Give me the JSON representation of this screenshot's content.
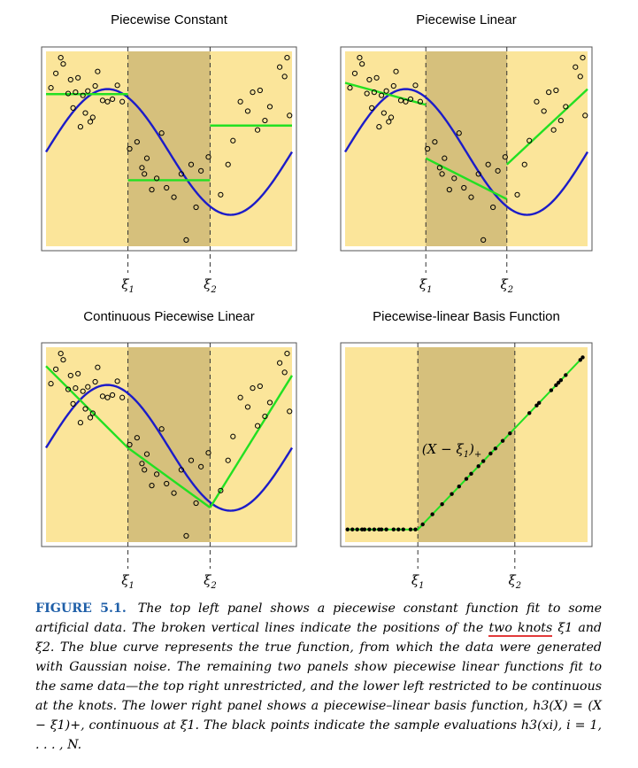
{
  "colors": {
    "outer_region": "#fbe59a",
    "middle_region": "#d6c07c",
    "true_curve": "#1c1cc8",
    "fit": "#22e022",
    "points": "#000000",
    "frame": "#555555",
    "figure_label": "#1f5fa8",
    "underline": "#e23a3a"
  },
  "knot_labels": [
    "ξ1",
    "ξ2"
  ],
  "chart_data": [
    {
      "type": "scatter",
      "title": "Piecewise Constant",
      "knots": [
        "ξ1",
        "ξ2"
      ],
      "x_tick_labels": [
        "ξ1",
        "ξ2"
      ],
      "xlim": [
        0,
        1
      ],
      "ylim": [
        -1.5,
        1.6
      ],
      "knot_values": [
        0.333,
        0.667
      ],
      "true_function": "sin(2*pi*x)",
      "fit": {
        "kind": "piecewise-constant",
        "segments": [
          {
            "x0": 0.0,
            "x1": 0.333,
            "y0": 0.92,
            "y1": 0.92
          },
          {
            "x0": 0.333,
            "x1": 0.667,
            "y0": -0.45,
            "y1": -0.45
          },
          {
            "x0": 0.667,
            "x1": 1.0,
            "y0": 0.42,
            "y1": 0.42
          }
        ]
      },
      "grid": false,
      "legend": "none"
    },
    {
      "type": "scatter",
      "title": "Piecewise Linear",
      "knots": [
        "ξ1",
        "ξ2"
      ],
      "x_tick_labels": [
        "ξ1",
        "ξ2"
      ],
      "xlim": [
        0,
        1
      ],
      "ylim": [
        -1.5,
        1.6
      ],
      "knot_values": [
        0.333,
        0.667
      ],
      "true_function": "sin(2*pi*x)",
      "fit": {
        "kind": "piecewise-linear",
        "segments": [
          {
            "x0": 0.0,
            "x1": 0.333,
            "y0": 1.1,
            "y1": 0.75
          },
          {
            "x0": 0.333,
            "x1": 0.667,
            "y0": -0.1,
            "y1": -0.75
          },
          {
            "x0": 0.667,
            "x1": 1.0,
            "y0": -0.2,
            "y1": 1.0
          }
        ]
      },
      "grid": false,
      "legend": "none"
    },
    {
      "type": "scatter",
      "title": "Continuous Piecewise Linear",
      "knots": [
        "ξ1",
        "ξ2"
      ],
      "x_tick_labels": [
        "ξ1",
        "ξ2"
      ],
      "xlim": [
        0,
        1
      ],
      "ylim": [
        -1.5,
        1.6
      ],
      "knot_values": [
        0.333,
        0.667
      ],
      "true_function": "sin(2*pi*x)",
      "fit": {
        "kind": "continuous-piecewise-linear",
        "segments": [
          {
            "x0": 0.0,
            "x1": 0.333,
            "y0": 1.3,
            "y1": 0.0
          },
          {
            "x0": 0.333,
            "x1": 0.667,
            "y0": 0.0,
            "y1": -0.95
          },
          {
            "x0": 0.667,
            "x1": 1.0,
            "y0": -0.95,
            "y1": 1.15
          }
        ]
      },
      "grid": false,
      "legend": "none"
    },
    {
      "type": "line",
      "title": "Piecewise-linear Basis Function",
      "knots": [
        "ξ1",
        "ξ2"
      ],
      "x_tick_labels": [
        "ξ1",
        "ξ2"
      ],
      "annotation": "(X − ξ1)+",
      "xlim": [
        0,
        1
      ],
      "ylim": [
        -0.05,
        0.72
      ],
      "knot_values": [
        0.3,
        0.7
      ],
      "basis": "max(0, x - xi1)",
      "sample_x": [
        0.01,
        0.03,
        0.05,
        0.07,
        0.08,
        0.1,
        0.12,
        0.14,
        0.15,
        0.17,
        0.2,
        0.22,
        0.24,
        0.27,
        0.29,
        0.32,
        0.36,
        0.4,
        0.44,
        0.47,
        0.5,
        0.52,
        0.55,
        0.57,
        0.6,
        0.62,
        0.65,
        0.68,
        0.76,
        0.79,
        0.8,
        0.85,
        0.87,
        0.88,
        0.89,
        0.91,
        0.97,
        0.98
      ],
      "grid": false,
      "legend": "none"
    }
  ],
  "scatter_points": [
    [
      0.02,
      1.02
    ],
    [
      0.04,
      1.25
    ],
    [
      0.06,
      1.5
    ],
    [
      0.07,
      1.4
    ],
    [
      0.09,
      0.93
    ],
    [
      0.1,
      1.15
    ],
    [
      0.11,
      0.7
    ],
    [
      0.12,
      0.95
    ],
    [
      0.13,
      1.18
    ],
    [
      0.14,
      0.4
    ],
    [
      0.15,
      0.9
    ],
    [
      0.16,
      0.62
    ],
    [
      0.17,
      0.97
    ],
    [
      0.18,
      0.48
    ],
    [
      0.19,
      0.55
    ],
    [
      0.2,
      1.05
    ],
    [
      0.21,
      1.28
    ],
    [
      0.23,
      0.82
    ],
    [
      0.25,
      0.8
    ],
    [
      0.27,
      0.84
    ],
    [
      0.29,
      1.06
    ],
    [
      0.31,
      0.8
    ],
    [
      0.34,
      0.05
    ],
    [
      0.37,
      0.16
    ],
    [
      0.39,
      -0.25
    ],
    [
      0.4,
      -0.35
    ],
    [
      0.41,
      -0.1
    ],
    [
      0.43,
      -0.6
    ],
    [
      0.45,
      -0.42
    ],
    [
      0.47,
      0.3
    ],
    [
      0.49,
      -0.57
    ],
    [
      0.52,
      -0.72
    ],
    [
      0.55,
      -0.35
    ],
    [
      0.57,
      -1.4
    ],
    [
      0.59,
      -0.2
    ],
    [
      0.61,
      -0.88
    ],
    [
      0.63,
      -0.3
    ],
    [
      0.66,
      -0.08
    ],
    [
      0.71,
      -0.68
    ],
    [
      0.74,
      -0.2
    ],
    [
      0.76,
      0.18
    ],
    [
      0.79,
      0.8
    ],
    [
      0.82,
      0.65
    ],
    [
      0.84,
      0.95
    ],
    [
      0.86,
      0.35
    ],
    [
      0.87,
      0.98
    ],
    [
      0.89,
      0.5
    ],
    [
      0.91,
      0.72
    ],
    [
      0.95,
      1.35
    ],
    [
      0.97,
      1.2
    ],
    [
      0.98,
      1.5
    ],
    [
      0.99,
      0.58
    ]
  ],
  "caption": {
    "figure_label": "FIGURE 5.1.",
    "text_1": "The top left panel shows a piecewise constant function fit to some artificial data. The broken vertical lines indicate the positions of the",
    "highlight": "two knots",
    "text_2": "ξ1 and ξ2. The blue curve represents the true function, from which the data were generated with Gaussian noise. The remaining two panels show piecewise linear functions fit to the same data—the top right unrestricted, and the lower left restricted to be continuous at the knots. The lower right panel shows a piecewise–linear basis function, h3(X) = (X − ξ1)+, continuous at ξ1. The black points indicate the sample evaluations h3(xi), i = 1, . . . , N."
  }
}
